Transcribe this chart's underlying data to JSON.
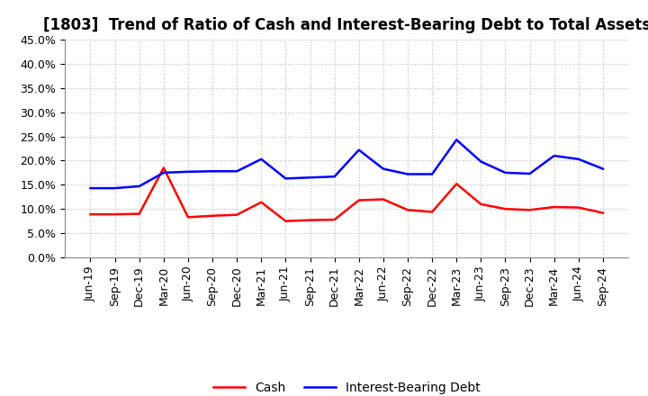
{
  "title": "[1803]  Trend of Ratio of Cash and Interest-Bearing Debt to Total Assets",
  "labels": [
    "Jun-19",
    "Sep-19",
    "Dec-19",
    "Mar-20",
    "Jun-20",
    "Sep-20",
    "Dec-20",
    "Mar-21",
    "Jun-21",
    "Sep-21",
    "Dec-21",
    "Mar-22",
    "Jun-22",
    "Sep-22",
    "Dec-22",
    "Mar-23",
    "Jun-23",
    "Sep-23",
    "Dec-23",
    "Mar-24",
    "Jun-24",
    "Sep-24"
  ],
  "cash": [
    0.089,
    0.089,
    0.09,
    0.185,
    0.083,
    0.086,
    0.088,
    0.114,
    0.075,
    0.077,
    0.078,
    0.118,
    0.12,
    0.098,
    0.094,
    0.152,
    0.11,
    0.1,
    0.098,
    0.104,
    0.103,
    0.092
  ],
  "ibd": [
    0.143,
    0.143,
    0.147,
    0.175,
    0.177,
    0.178,
    0.178,
    0.203,
    0.163,
    0.165,
    0.167,
    0.222,
    0.183,
    0.172,
    0.172,
    0.243,
    0.198,
    0.175,
    0.173,
    0.21,
    0.203,
    0.183
  ],
  "cash_color": "#ff0000",
  "ibd_color": "#0000ff",
  "background_color": "#ffffff",
  "plot_bg_color": "#ffffff",
  "grid_color": "#aaaaaa",
  "ylim": [
    0.0,
    0.45
  ],
  "yticks": [
    0.0,
    0.05,
    0.1,
    0.15,
    0.2,
    0.25,
    0.3,
    0.35,
    0.4,
    0.45
  ],
  "legend_cash": "Cash",
  "legend_ibd": "Interest-Bearing Debt",
  "title_fontsize": 12,
  "tick_fontsize": 9,
  "legend_fontsize": 10,
  "linewidth": 1.8
}
